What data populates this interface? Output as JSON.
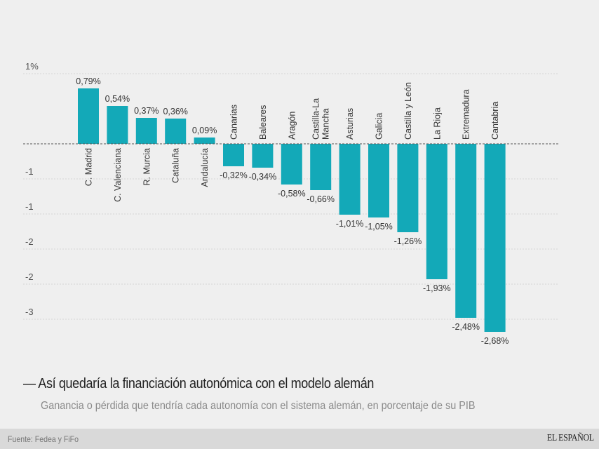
{
  "chart_data": {
    "type": "bar",
    "title": "Así quedaría la financiación autonómica con el modelo alemán",
    "title_prefix": "—",
    "subtitle": "Ganancia o pérdida que tendría cada autonomía con el sistema alemán, en porcentaje de su PIB",
    "xlabel": "",
    "ylabel": "",
    "unit": "%",
    "categories": [
      "C. Madrid",
      "C. Valenciana",
      "R. Murcia",
      "Cataluña",
      "Andalucía",
      "Canarias",
      "Baleares",
      "Aragón",
      "Castilla-La Mancha",
      "Asturias",
      "Galicia",
      "Castilla y León",
      "La Rioja",
      "Extremadura",
      "Cantabria"
    ],
    "category_lines": [
      [
        "C. Madrid"
      ],
      [
        "C. Valenciana"
      ],
      [
        "R. Murcia"
      ],
      [
        "Cataluña"
      ],
      [
        "Andalucía"
      ],
      [
        "Canarias"
      ],
      [
        "Baleares"
      ],
      [
        "Aragón"
      ],
      [
        "Castilla-La",
        "Mancha"
      ],
      [
        "Asturias"
      ],
      [
        "Galicia"
      ],
      [
        "Castilla y León"
      ],
      [
        "La Rioja"
      ],
      [
        "Extremadura"
      ],
      [
        "Cantabria"
      ]
    ],
    "values": [
      0.79,
      0.54,
      0.37,
      0.36,
      0.09,
      -0.32,
      -0.34,
      -0.58,
      -0.66,
      -1.01,
      -1.05,
      -1.26,
      -1.93,
      -2.48,
      -2.68
    ],
    "value_labels": [
      "0,79%",
      "0,54%",
      "0,37%",
      "0,36%",
      "0,09%",
      "-0,32%",
      "-0,34%",
      "-0,58%",
      "-0,66%",
      "-1,01%",
      "-1,05%",
      "-1,26%",
      "-1,93%",
      "-2,48%",
      "-2,68%"
    ],
    "y_ticks": [
      {
        "value": 1,
        "label": "1%"
      },
      {
        "value": -0.5,
        "label": "-1"
      },
      {
        "value": -1,
        "label": "-1"
      },
      {
        "value": -1.5,
        "label": "-2"
      },
      {
        "value": -2,
        "label": "-2"
      },
      {
        "value": -2.5,
        "label": "-3"
      }
    ],
    "ylim": [
      -2.75,
      1.0
    ],
    "grid": true,
    "legend": "none",
    "bar_color": "#13a9b8",
    "zero_line": true
  },
  "footer": {
    "source": "Fuente: Fedea y FiFo",
    "brand": "EL ESPAÑOL"
  }
}
